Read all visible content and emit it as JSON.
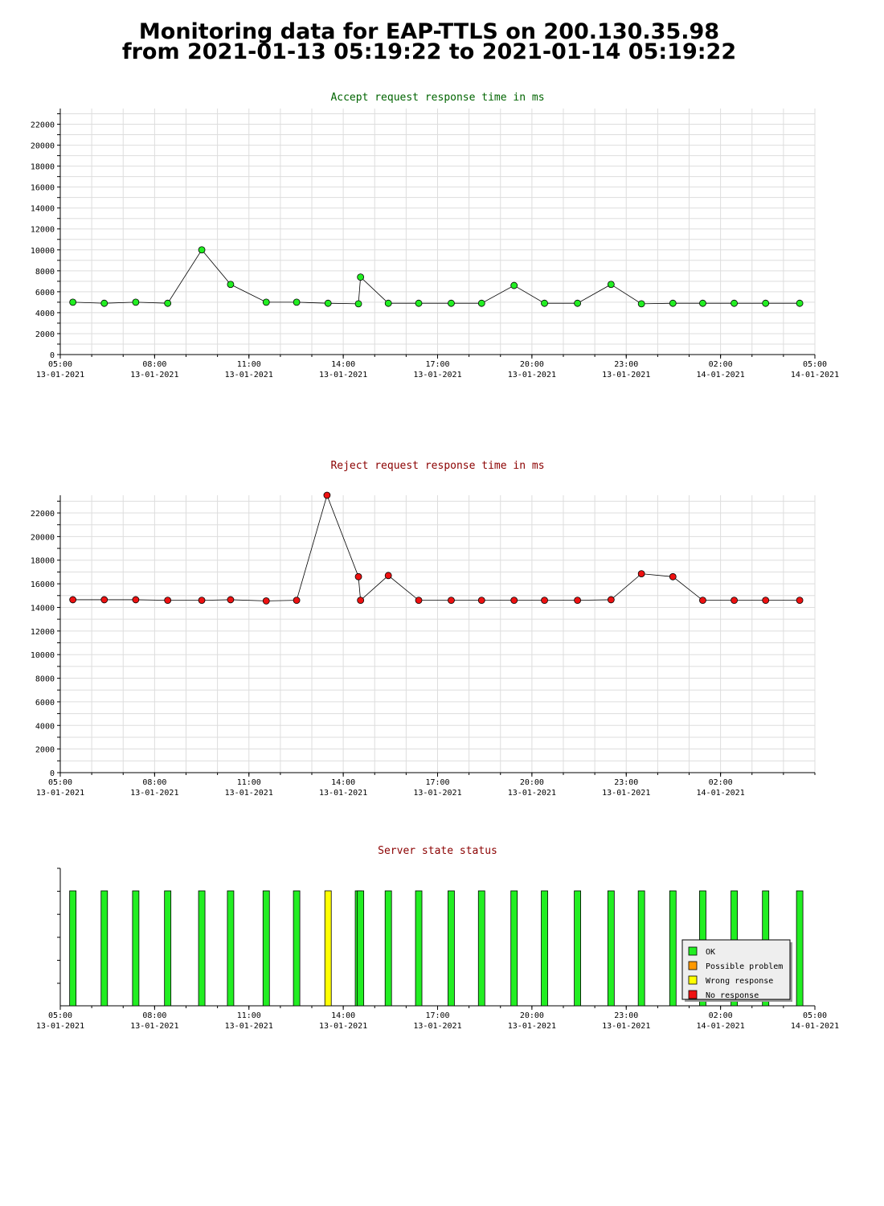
{
  "page": {
    "title_line1": "Monitoring data for EAP-TTLS on 200.130.35.98",
    "title_line2": "from 2021-01-13 05:19:22 to 2021-01-14 05:19:22"
  },
  "colors": {
    "accept_title": "#006400",
    "reject_title": "#8b0000",
    "status_title": "#8b0000",
    "ok": "#22ee22",
    "possible_problem": "#ff9900",
    "wrong_response": "#ffff00",
    "no_response": "#ee1111",
    "grid": "#dddddd"
  },
  "chart_data": [
    {
      "id": "accept",
      "type": "line",
      "title": "Accept request response time in ms",
      "xlabel": "",
      "ylabel": "",
      "xlim": [
        "2021-01-13 05:00",
        "2021-01-14 05:00"
      ],
      "ylim": [
        0,
        23500
      ],
      "grid": true,
      "y_ticks": [
        0,
        2000,
        4000,
        6000,
        8000,
        10000,
        12000,
        14000,
        16000,
        18000,
        20000,
        22000
      ],
      "x_ticks": [
        {
          "time": "05:00",
          "date": "13-01-2021"
        },
        {
          "time": "08:00",
          "date": "13-01-2021"
        },
        {
          "time": "11:00",
          "date": "13-01-2021"
        },
        {
          "time": "14:00",
          "date": "13-01-2021"
        },
        {
          "time": "17:00",
          "date": "13-01-2021"
        },
        {
          "time": "20:00",
          "date": "13-01-2021"
        },
        {
          "time": "23:00",
          "date": "13-01-2021"
        },
        {
          "time": "02:00",
          "date": "14-01-2021"
        },
        {
          "time": "05:00",
          "date": "14-01-2021"
        }
      ],
      "series": [
        {
          "color": "#22ee22",
          "x": [
            "2021-01-13 05:24",
            "2021-01-13 06:24",
            "2021-01-13 07:24",
            "2021-01-13 08:25",
            "2021-01-13 09:30",
            "2021-01-13 10:25",
            "2021-01-13 11:33",
            "2021-01-13 12:31",
            "2021-01-13 13:31",
            "2021-01-13 14:29",
            "2021-01-13 14:33",
            "2021-01-13 15:26",
            "2021-01-13 16:24",
            "2021-01-13 17:26",
            "2021-01-13 18:24",
            "2021-01-13 19:26",
            "2021-01-13 20:24",
            "2021-01-13 21:27",
            "2021-01-13 22:31",
            "2021-01-13 23:29",
            "2021-01-14 00:29",
            "2021-01-14 01:26",
            "2021-01-14 02:26",
            "2021-01-14 03:26",
            "2021-01-14 04:31"
          ],
          "y": [
            5000,
            4900,
            5000,
            4900,
            10000,
            6700,
            5000,
            5000,
            4900,
            4850,
            7400,
            4900,
            4900,
            4900,
            4900,
            6600,
            4900,
            4900,
            6700,
            4850,
            4900,
            4900,
            4900,
            4900,
            4900
          ]
        }
      ]
    },
    {
      "id": "reject",
      "type": "line",
      "title": "Reject request response time in ms",
      "xlabel": "",
      "ylabel": "",
      "xlim": [
        "2021-01-13 05:00",
        "2021-01-14 05:00"
      ],
      "ylim": [
        0,
        23500
      ],
      "grid": true,
      "y_ticks": [
        0,
        2000,
        4000,
        6000,
        8000,
        10000,
        12000,
        14000,
        16000,
        18000,
        20000,
        22000
      ],
      "x_ticks": [
        {
          "time": "05:00",
          "date": "13-01-2021"
        },
        {
          "time": "08:00",
          "date": "13-01-2021"
        },
        {
          "time": "11:00",
          "date": "13-01-2021"
        },
        {
          "time": "14:00",
          "date": "13-01-2021"
        },
        {
          "time": "17:00",
          "date": "13-01-2021"
        },
        {
          "time": "20:00",
          "date": "13-01-2021"
        },
        {
          "time": "23:00",
          "date": "13-01-2021"
        },
        {
          "time": "02:00",
          "date": "14-01-2021"
        }
      ],
      "series": [
        {
          "color": "#ee1111",
          "x": [
            "2021-01-13 05:24",
            "2021-01-13 06:24",
            "2021-01-13 07:24",
            "2021-01-13 08:25",
            "2021-01-13 09:30",
            "2021-01-13 10:25",
            "2021-01-13 11:33",
            "2021-01-13 12:31",
            "2021-01-13 13:29",
            "2021-01-13 14:29",
            "2021-01-13 14:33",
            "2021-01-13 15:26",
            "2021-01-13 16:24",
            "2021-01-13 17:26",
            "2021-01-13 18:24",
            "2021-01-13 19:26",
            "2021-01-13 20:24",
            "2021-01-13 21:27",
            "2021-01-13 22:31",
            "2021-01-13 23:29",
            "2021-01-14 00:29",
            "2021-01-14 01:26",
            "2021-01-14 02:26",
            "2021-01-14 03:26",
            "2021-01-14 04:31"
          ],
          "y": [
            14650,
            14650,
            14650,
            14600,
            14600,
            14650,
            14550,
            14600,
            23500,
            16600,
            14600,
            16700,
            14600,
            14600,
            14600,
            14600,
            14600,
            14600,
            14650,
            16850,
            16600,
            14600,
            14600,
            14600,
            14600
          ]
        }
      ]
    },
    {
      "id": "status",
      "type": "bar",
      "title": "Server state status",
      "xlabel": "",
      "ylabel": "",
      "xlim": [
        "2021-01-13 05:00",
        "2021-01-14 05:00"
      ],
      "grid": false,
      "legend_position": "bottom-right",
      "legend": [
        "OK",
        "Possible problem",
        "Wrong response",
        "No response"
      ],
      "x_ticks": [
        {
          "time": "05:00",
          "date": "13-01-2021"
        },
        {
          "time": "08:00",
          "date": "13-01-2021"
        },
        {
          "time": "11:00",
          "date": "13-01-2021"
        },
        {
          "time": "14:00",
          "date": "13-01-2021"
        },
        {
          "time": "17:00",
          "date": "13-01-2021"
        },
        {
          "time": "20:00",
          "date": "13-01-2021"
        },
        {
          "time": "23:00",
          "date": "13-01-2021"
        },
        {
          "time": "02:00",
          "date": "14-01-2021"
        },
        {
          "time": "05:00",
          "date": "14-01-2021"
        }
      ],
      "bars": [
        {
          "x": "2021-01-13 05:24",
          "state": "OK"
        },
        {
          "x": "2021-01-13 06:24",
          "state": "OK"
        },
        {
          "x": "2021-01-13 07:24",
          "state": "OK"
        },
        {
          "x": "2021-01-13 08:25",
          "state": "OK"
        },
        {
          "x": "2021-01-13 09:30",
          "state": "OK"
        },
        {
          "x": "2021-01-13 10:25",
          "state": "OK"
        },
        {
          "x": "2021-01-13 11:33",
          "state": "OK"
        },
        {
          "x": "2021-01-13 12:31",
          "state": "OK"
        },
        {
          "x": "2021-01-13 13:31",
          "state": "Wrong response"
        },
        {
          "x": "2021-01-13 14:29",
          "state": "OK"
        },
        {
          "x": "2021-01-13 14:33",
          "state": "OK"
        },
        {
          "x": "2021-01-13 15:26",
          "state": "OK"
        },
        {
          "x": "2021-01-13 16:24",
          "state": "OK"
        },
        {
          "x": "2021-01-13 17:26",
          "state": "OK"
        },
        {
          "x": "2021-01-13 18:24",
          "state": "OK"
        },
        {
          "x": "2021-01-13 19:26",
          "state": "OK"
        },
        {
          "x": "2021-01-13 20:24",
          "state": "OK"
        },
        {
          "x": "2021-01-13 21:27",
          "state": "OK"
        },
        {
          "x": "2021-01-13 22:31",
          "state": "OK"
        },
        {
          "x": "2021-01-13 23:29",
          "state": "OK"
        },
        {
          "x": "2021-01-14 00:29",
          "state": "OK"
        },
        {
          "x": "2021-01-14 01:26",
          "state": "OK"
        },
        {
          "x": "2021-01-14 02:26",
          "state": "OK"
        },
        {
          "x": "2021-01-14 03:26",
          "state": "OK"
        },
        {
          "x": "2021-01-14 04:31",
          "state": "OK"
        }
      ]
    }
  ]
}
